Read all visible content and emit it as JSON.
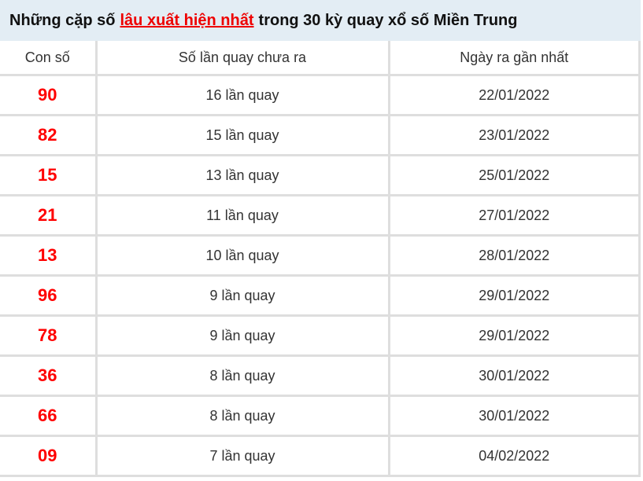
{
  "title": {
    "prefix": "Những cặp số",
    "highlight": "lâu xuất hiện nhất",
    "suffix": "trong 30 kỳ quay xổ số Miền Trung"
  },
  "colors": {
    "header_bg": "#e3edf4",
    "number": "#ff0000",
    "highlight": "#ee0000"
  },
  "table": {
    "headers": [
      "Con số",
      "Số lần quay chưa ra",
      "Ngày ra gần nhất"
    ],
    "rows": [
      [
        "90",
        "16 lần quay",
        "22/01/2022"
      ],
      [
        "82",
        "15 lần quay",
        "23/01/2022"
      ],
      [
        "15",
        "13 lần quay",
        "25/01/2022"
      ],
      [
        "21",
        "11 lần quay",
        "27/01/2022"
      ],
      [
        "13",
        "10 lần quay",
        "28/01/2022"
      ],
      [
        "96",
        "9 lần quay",
        "29/01/2022"
      ],
      [
        "78",
        "9 lần quay",
        "29/01/2022"
      ],
      [
        "36",
        "8 lần quay",
        "30/01/2022"
      ],
      [
        "66",
        "8 lần quay",
        "30/01/2022"
      ],
      [
        "09",
        "7 lần quay",
        "04/02/2022"
      ]
    ]
  }
}
